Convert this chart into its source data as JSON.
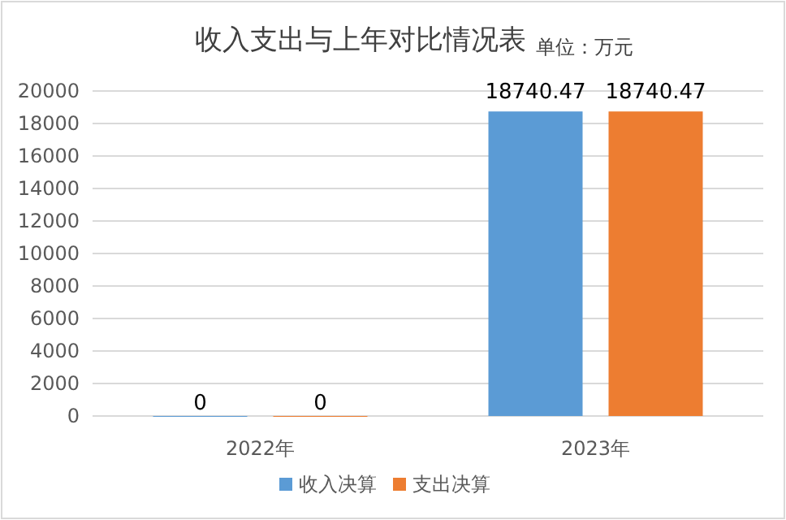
{
  "chart_data": {
    "type": "bar",
    "title": "收入支出与上年对比情况表",
    "subtitle": "单位：万元",
    "categories": [
      "2022年",
      "2023年"
    ],
    "series": [
      {
        "name": "收入决算",
        "color": "#5b9bd5",
        "values": [
          0,
          18740.47
        ]
      },
      {
        "name": "支出决算",
        "color": "#ed7d31",
        "values": [
          0,
          18740.47
        ]
      }
    ],
    "ylim": [
      0,
      20000
    ],
    "yticks": [
      0,
      2000,
      4000,
      6000,
      8000,
      10000,
      12000,
      14000,
      16000,
      18000,
      20000
    ],
    "grid": "y",
    "legend": "bottom",
    "data_labels": true
  }
}
